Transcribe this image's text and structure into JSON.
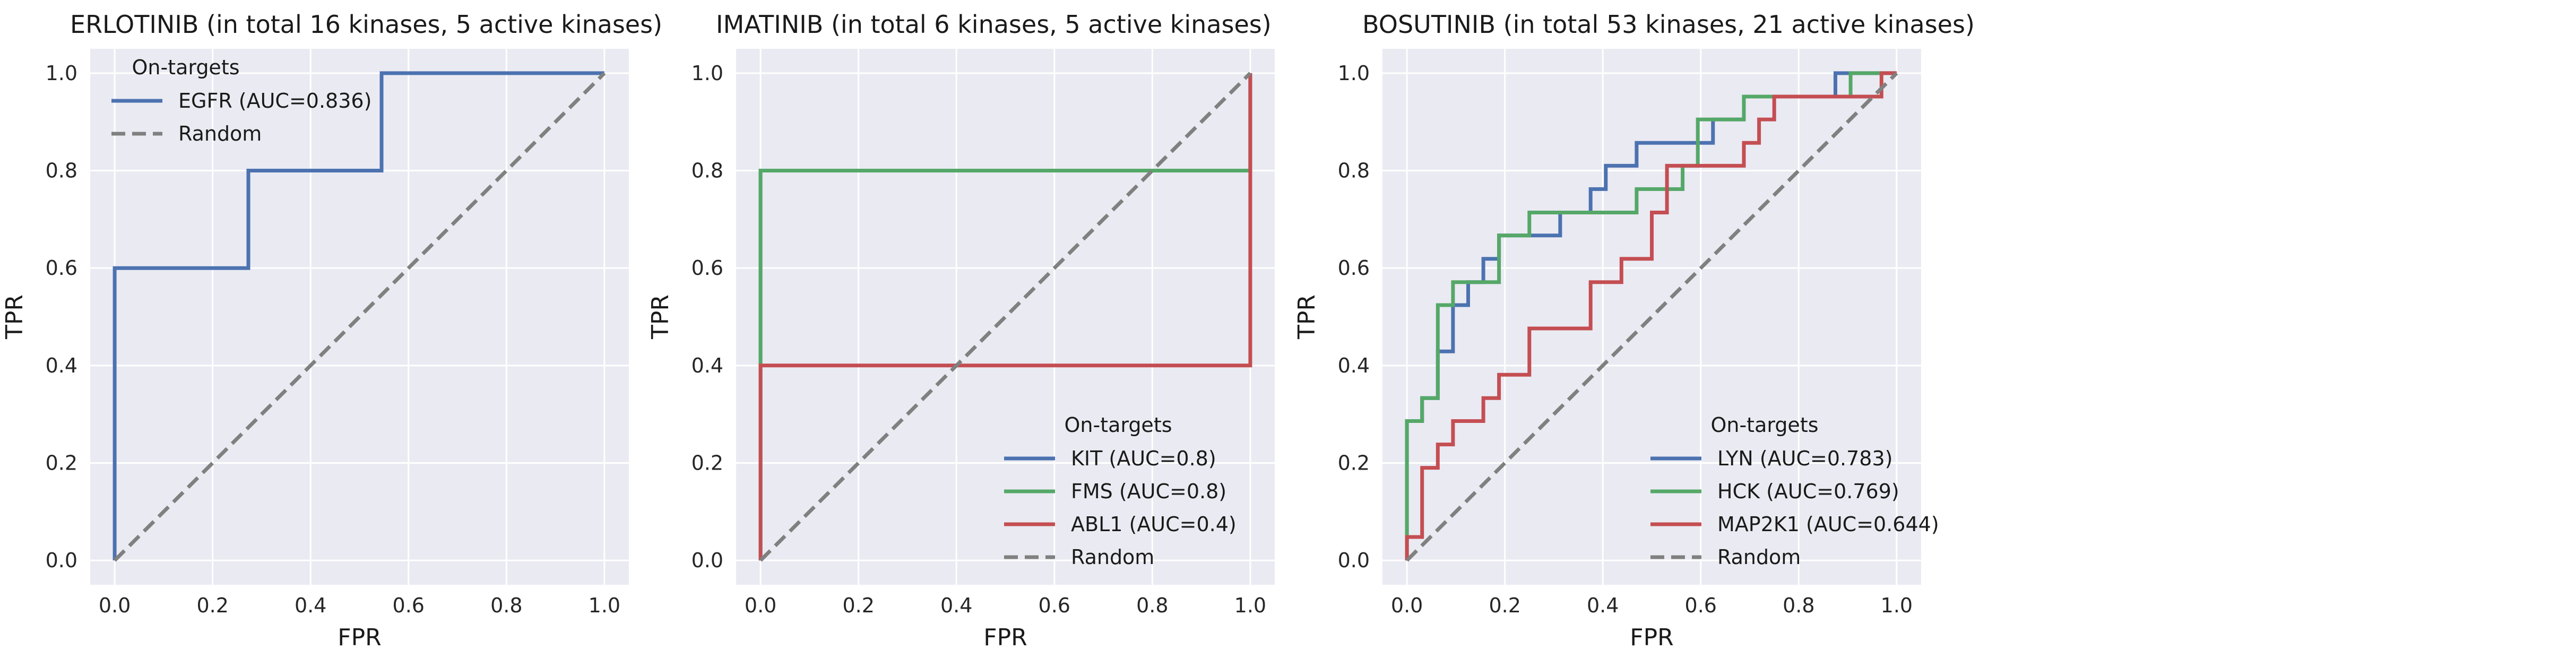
{
  "figure": {
    "background": "#ffffff",
    "panel_background": "#EAEAF2",
    "grid_color": "#ffffff",
    "colors": {
      "blue": "#4C72B0",
      "green": "#55A868",
      "red": "#C44E52",
      "random": "#808080"
    }
  },
  "chart_data": [
    {
      "type": "line",
      "title": "ERLOTINIB (in total 16 kinases, 5 active kinases)",
      "xlabel": "FPR",
      "ylabel": "TPR",
      "xlim": [
        -0.05,
        1.05
      ],
      "ylim": [
        -0.05,
        1.05
      ],
      "xticks": [
        0.0,
        0.2,
        0.4,
        0.6,
        0.8,
        1.0
      ],
      "yticks": [
        0.0,
        0.2,
        0.4,
        0.6,
        0.8,
        1.0
      ],
      "xtick_labels": [
        "0.0",
        "0.2",
        "0.4",
        "0.6",
        "0.8",
        "1.0"
      ],
      "ytick_labels": [
        "0.0",
        "0.2",
        "0.4",
        "0.6",
        "0.8",
        "1.0"
      ],
      "grid": true,
      "legend": {
        "title": "On-targets",
        "position": "top-left"
      },
      "series": [
        {
          "name": "EGFR (AUC=0.836)",
          "color": "#4C72B0",
          "style": "step",
          "points": [
            [
              0,
              0
            ],
            [
              0,
              0.6
            ],
            [
              0.273,
              0.6
            ],
            [
              0.273,
              0.8
            ],
            [
              0.545,
              0.8
            ],
            [
              0.545,
              1.0
            ],
            [
              1.0,
              1.0
            ]
          ]
        },
        {
          "name": "Random",
          "color": "#808080",
          "style": "dashed",
          "points": [
            [
              0,
              0
            ],
            [
              1,
              1
            ]
          ]
        }
      ]
    },
    {
      "type": "line",
      "title": "IMATINIB (in total 6 kinases, 5 active kinases)",
      "xlabel": "FPR",
      "ylabel": "TPR",
      "xlim": [
        -0.05,
        1.05
      ],
      "ylim": [
        -0.05,
        1.05
      ],
      "xticks": [
        0.0,
        0.2,
        0.4,
        0.6,
        0.8,
        1.0
      ],
      "yticks": [
        0.0,
        0.2,
        0.4,
        0.6,
        0.8,
        1.0
      ],
      "xtick_labels": [
        "0.0",
        "0.2",
        "0.4",
        "0.6",
        "0.8",
        "1.0"
      ],
      "ytick_labels": [
        "0.0",
        "0.2",
        "0.4",
        "0.6",
        "0.8",
        "1.0"
      ],
      "grid": true,
      "legend": {
        "title": "On-targets",
        "position": "bottom-right"
      },
      "series": [
        {
          "name": "KIT (AUC=0.8)",
          "color": "#4C72B0",
          "style": "step",
          "points": [
            [
              0,
              0
            ],
            [
              0,
              0.8
            ],
            [
              1.0,
              0.8
            ],
            [
              1.0,
              1.0
            ]
          ]
        },
        {
          "name": "FMS (AUC=0.8)",
          "color": "#55A868",
          "style": "step",
          "points": [
            [
              0,
              0
            ],
            [
              0,
              0.8
            ],
            [
              1.0,
              0.8
            ],
            [
              1.0,
              1.0
            ]
          ]
        },
        {
          "name": "ABL1 (AUC=0.4)",
          "color": "#C44E52",
          "style": "step",
          "points": [
            [
              0,
              0
            ],
            [
              0,
              0.4
            ],
            [
              1.0,
              0.4
            ],
            [
              1.0,
              1.0
            ]
          ]
        },
        {
          "name": "Random",
          "color": "#808080",
          "style": "dashed",
          "points": [
            [
              0,
              0
            ],
            [
              1,
              1
            ]
          ]
        }
      ]
    },
    {
      "type": "line",
      "title": "BOSUTINIB (in total 53 kinases, 21 active kinases)",
      "xlabel": "FPR",
      "ylabel": "TPR",
      "xlim": [
        -0.05,
        1.05
      ],
      "ylim": [
        -0.05,
        1.05
      ],
      "xticks": [
        0.0,
        0.2,
        0.4,
        0.6,
        0.8,
        1.0
      ],
      "yticks": [
        0.0,
        0.2,
        0.4,
        0.6,
        0.8,
        1.0
      ],
      "xtick_labels": [
        "0.0",
        "0.2",
        "0.4",
        "0.6",
        "0.8",
        "1.0"
      ],
      "ytick_labels": [
        "0.0",
        "0.2",
        "0.4",
        "0.6",
        "0.8",
        "1.0"
      ],
      "grid": true,
      "legend": {
        "title": "On-targets",
        "position": "bottom-right"
      },
      "series": [
        {
          "name": "LYN (AUC=0.783)",
          "color": "#4C72B0",
          "style": "step",
          "points": [
            [
              0,
              0
            ],
            [
              0,
              0.286
            ],
            [
              0.031,
              0.286
            ],
            [
              0.031,
              0.333
            ],
            [
              0.063,
              0.333
            ],
            [
              0.063,
              0.429
            ],
            [
              0.094,
              0.429
            ],
            [
              0.094,
              0.524
            ],
            [
              0.125,
              0.524
            ],
            [
              0.125,
              0.571
            ],
            [
              0.156,
              0.571
            ],
            [
              0.156,
              0.619
            ],
            [
              0.188,
              0.619
            ],
            [
              0.188,
              0.667
            ],
            [
              0.313,
              0.667
            ],
            [
              0.313,
              0.714
            ],
            [
              0.375,
              0.714
            ],
            [
              0.375,
              0.762
            ],
            [
              0.406,
              0.762
            ],
            [
              0.406,
              0.81
            ],
            [
              0.469,
              0.81
            ],
            [
              0.469,
              0.857
            ],
            [
              0.625,
              0.857
            ],
            [
              0.625,
              0.905
            ],
            [
              0.688,
              0.905
            ],
            [
              0.688,
              0.952
            ],
            [
              0.875,
              0.952
            ],
            [
              0.875,
              1.0
            ],
            [
              1.0,
              1.0
            ]
          ]
        },
        {
          "name": "HCK (AUC=0.769)",
          "color": "#55A868",
          "style": "step",
          "points": [
            [
              0,
              0
            ],
            [
              0,
              0.286
            ],
            [
              0.031,
              0.286
            ],
            [
              0.031,
              0.333
            ],
            [
              0.063,
              0.333
            ],
            [
              0.063,
              0.524
            ],
            [
              0.094,
              0.524
            ],
            [
              0.094,
              0.571
            ],
            [
              0.188,
              0.571
            ],
            [
              0.188,
              0.667
            ],
            [
              0.25,
              0.667
            ],
            [
              0.25,
              0.714
            ],
            [
              0.469,
              0.714
            ],
            [
              0.469,
              0.762
            ],
            [
              0.563,
              0.762
            ],
            [
              0.563,
              0.81
            ],
            [
              0.594,
              0.81
            ],
            [
              0.594,
              0.905
            ],
            [
              0.688,
              0.905
            ],
            [
              0.688,
              0.952
            ],
            [
              0.906,
              0.952
            ],
            [
              0.906,
              1.0
            ],
            [
              1.0,
              1.0
            ]
          ]
        },
        {
          "name": "MAP2K1 (AUC=0.644)",
          "color": "#C44E52",
          "style": "step",
          "points": [
            [
              0,
              0
            ],
            [
              0,
              0.048
            ],
            [
              0.031,
              0.048
            ],
            [
              0.031,
              0.19
            ],
            [
              0.063,
              0.19
            ],
            [
              0.063,
              0.238
            ],
            [
              0.094,
              0.238
            ],
            [
              0.094,
              0.286
            ],
            [
              0.156,
              0.286
            ],
            [
              0.156,
              0.333
            ],
            [
              0.188,
              0.333
            ],
            [
              0.188,
              0.381
            ],
            [
              0.25,
              0.381
            ],
            [
              0.25,
              0.476
            ],
            [
              0.375,
              0.476
            ],
            [
              0.375,
              0.571
            ],
            [
              0.438,
              0.571
            ],
            [
              0.438,
              0.619
            ],
            [
              0.5,
              0.619
            ],
            [
              0.5,
              0.714
            ],
            [
              0.531,
              0.714
            ],
            [
              0.531,
              0.81
            ],
            [
              0.688,
              0.81
            ],
            [
              0.688,
              0.857
            ],
            [
              0.719,
              0.857
            ],
            [
              0.719,
              0.905
            ],
            [
              0.75,
              0.905
            ],
            [
              0.75,
              0.952
            ],
            [
              0.969,
              0.952
            ],
            [
              0.969,
              1.0
            ],
            [
              1.0,
              1.0
            ]
          ]
        },
        {
          "name": "Random",
          "color": "#808080",
          "style": "dashed",
          "points": [
            [
              0,
              0
            ],
            [
              1,
              1
            ]
          ]
        }
      ]
    }
  ]
}
